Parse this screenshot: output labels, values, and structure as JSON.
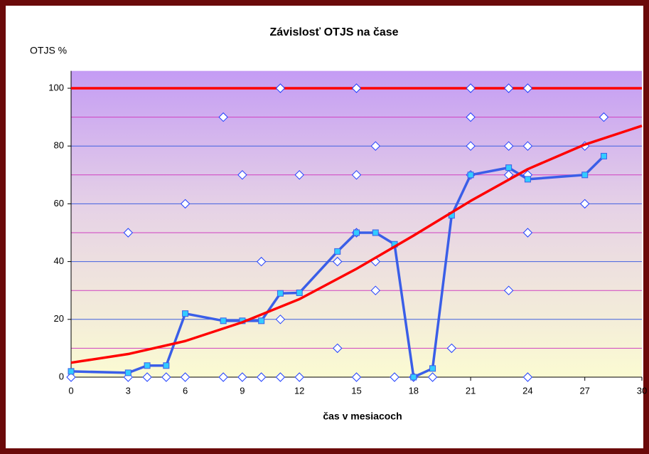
{
  "chart_data": {
    "type": "line",
    "title": "Závislosť OTJS na čase",
    "y_label": "OTJS %",
    "x_label": "čas v mesiacoch",
    "xlim": [
      0,
      30
    ],
    "xticks": [
      0,
      3,
      6,
      9,
      12,
      15,
      18,
      21,
      24,
      27,
      30
    ],
    "ylim": [
      0,
      106
    ],
    "yticks": [
      0,
      20,
      40,
      60,
      80,
      100
    ],
    "minor_yticks": [
      10,
      30,
      50,
      70,
      90
    ],
    "grid": true,
    "series": [
      {
        "color": "#ff0000",
        "marker": "none",
        "line": true,
        "x": [
          0,
          30
        ],
        "values": [
          100,
          100
        ]
      },
      {
        "color": "#1f3fff",
        "marker": "diamond",
        "line": false,
        "x": [
          0,
          3,
          3,
          4,
          5,
          6,
          6,
          8,
          8,
          9,
          9,
          10,
          10,
          11,
          11,
          11,
          12,
          12,
          14,
          14,
          15,
          15,
          15,
          15,
          16,
          16,
          16,
          17,
          18,
          19,
          20,
          21,
          21,
          21,
          21,
          23,
          23,
          23,
          23,
          24,
          24,
          24,
          24,
          24,
          27,
          27,
          28
        ],
        "values": [
          0,
          0,
          50,
          0,
          0,
          0,
          60,
          0,
          90,
          0,
          70,
          0,
          40,
          0,
          20,
          100,
          0,
          70,
          10,
          40,
          0,
          50,
          70,
          100,
          30,
          40,
          80,
          0,
          0,
          0,
          10,
          70,
          80,
          90,
          100,
          30,
          70,
          80,
          100,
          0,
          50,
          70,
          80,
          100,
          60,
          80,
          90
        ]
      },
      {
        "color": "#3a5ee8",
        "marker": "square",
        "marker_color": "#33ccff",
        "line": true,
        "x": [
          0,
          3,
          4,
          5,
          6,
          8,
          9,
          10,
          11,
          12,
          14,
          15,
          16,
          17,
          18,
          19,
          20,
          21,
          23,
          24,
          27,
          28
        ],
        "values": [
          2,
          1.5,
          4,
          4,
          22,
          19.5,
          19.5,
          19.5,
          29,
          29.2,
          43.5,
          50,
          50,
          46,
          0,
          3,
          56,
          70,
          72.5,
          68.5,
          70,
          76.5
        ]
      },
      {
        "color": "#ff0000",
        "marker": "none",
        "line": true,
        "x": [
          0,
          3,
          6,
          9,
          12,
          15,
          18,
          21,
          24,
          27,
          30
        ],
        "values": [
          5,
          8,
          12.5,
          19,
          27,
          37.5,
          49,
          61,
          72,
          80.5,
          87
        ]
      }
    ]
  }
}
